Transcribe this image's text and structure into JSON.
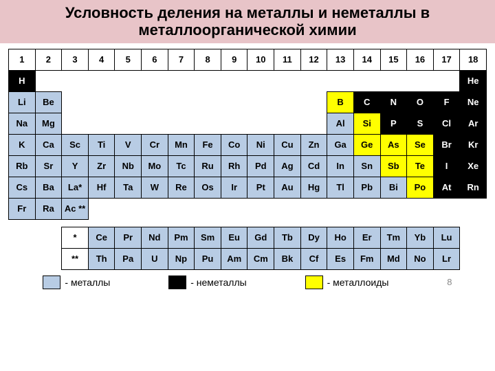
{
  "title": "Условность деления на металлы и неметаллы в металлоорганической химии",
  "colors": {
    "title_bg": "#e8c4c8",
    "metal": "#b8cce4",
    "nonmetal": "#000000",
    "nonmetal_text": "#ffffff",
    "metalloid": "#ffff00",
    "border": "#000000",
    "bg": "#ffffff"
  },
  "groups": [
    "1",
    "2",
    "3",
    "4",
    "5",
    "6",
    "7",
    "8",
    "9",
    "10",
    "11",
    "12",
    "13",
    "14",
    "15",
    "16",
    "17",
    "18"
  ],
  "rows": [
    [
      {
        "s": "H",
        "c": "nonmetal"
      },
      {
        "s": "",
        "c": "empty",
        "span": 16
      },
      {
        "s": "He",
        "c": "nonmetal"
      }
    ],
    [
      {
        "s": "Li",
        "c": "metal"
      },
      {
        "s": "Be",
        "c": "metal"
      },
      {
        "s": "",
        "c": "empty",
        "span": 10
      },
      {
        "s": "B",
        "c": "metalloid"
      },
      {
        "s": "C",
        "c": "nonmetal"
      },
      {
        "s": "N",
        "c": "nonmetal"
      },
      {
        "s": "O",
        "c": "nonmetal"
      },
      {
        "s": "F",
        "c": "nonmetal"
      },
      {
        "s": "Ne",
        "c": "nonmetal"
      }
    ],
    [
      {
        "s": "Na",
        "c": "metal"
      },
      {
        "s": "Mg",
        "c": "metal"
      },
      {
        "s": "",
        "c": "empty",
        "span": 10
      },
      {
        "s": "Al",
        "c": "metal"
      },
      {
        "s": "Si",
        "c": "metalloid"
      },
      {
        "s": "P",
        "c": "nonmetal"
      },
      {
        "s": "S",
        "c": "nonmetal"
      },
      {
        "s": "Cl",
        "c": "nonmetal"
      },
      {
        "s": "Ar",
        "c": "nonmetal"
      }
    ],
    [
      {
        "s": "K",
        "c": "metal"
      },
      {
        "s": "Ca",
        "c": "metal"
      },
      {
        "s": "Sc",
        "c": "metal"
      },
      {
        "s": "Ti",
        "c": "metal"
      },
      {
        "s": "V",
        "c": "metal"
      },
      {
        "s": "Cr",
        "c": "metal"
      },
      {
        "s": "Mn",
        "c": "metal"
      },
      {
        "s": "Fe",
        "c": "metal"
      },
      {
        "s": "Co",
        "c": "metal"
      },
      {
        "s": "Ni",
        "c": "metal"
      },
      {
        "s": "Cu",
        "c": "metal"
      },
      {
        "s": "Zn",
        "c": "metal"
      },
      {
        "s": "Ga",
        "c": "metal"
      },
      {
        "s": "Ge",
        "c": "metalloid"
      },
      {
        "s": "As",
        "c": "metalloid"
      },
      {
        "s": "Se",
        "c": "metalloid"
      },
      {
        "s": "Br",
        "c": "nonmetal"
      },
      {
        "s": "Kr",
        "c": "nonmetal"
      }
    ],
    [
      {
        "s": "Rb",
        "c": "metal"
      },
      {
        "s": "Sr",
        "c": "metal"
      },
      {
        "s": "Y",
        "c": "metal"
      },
      {
        "s": "Zr",
        "c": "metal"
      },
      {
        "s": "Nb",
        "c": "metal"
      },
      {
        "s": "Mo",
        "c": "metal"
      },
      {
        "s": "Tc",
        "c": "metal"
      },
      {
        "s": "Ru",
        "c": "metal"
      },
      {
        "s": "Rh",
        "c": "metal"
      },
      {
        "s": "Pd",
        "c": "metal"
      },
      {
        "s": "Ag",
        "c": "metal"
      },
      {
        "s": "Cd",
        "c": "metal"
      },
      {
        "s": "In",
        "c": "metal"
      },
      {
        "s": "Sn",
        "c": "metal"
      },
      {
        "s": "Sb",
        "c": "metalloid"
      },
      {
        "s": "Te",
        "c": "metalloid"
      },
      {
        "s": "I",
        "c": "nonmetal"
      },
      {
        "s": "Xe",
        "c": "nonmetal"
      }
    ],
    [
      {
        "s": "Cs",
        "c": "metal"
      },
      {
        "s": "Ba",
        "c": "metal"
      },
      {
        "s": "La*",
        "c": "metal"
      },
      {
        "s": "Hf",
        "c": "metal"
      },
      {
        "s": "Ta",
        "c": "metal"
      },
      {
        "s": "W",
        "c": "metal"
      },
      {
        "s": "Re",
        "c": "metal"
      },
      {
        "s": "Os",
        "c": "metal"
      },
      {
        "s": "Ir",
        "c": "metal"
      },
      {
        "s": "Pt",
        "c": "metal"
      },
      {
        "s": "Au",
        "c": "metal"
      },
      {
        "s": "Hg",
        "c": "metal"
      },
      {
        "s": "Tl",
        "c": "metal"
      },
      {
        "s": "Pb",
        "c": "metal"
      },
      {
        "s": "Bi",
        "c": "metal"
      },
      {
        "s": "Po",
        "c": "metalloid"
      },
      {
        "s": "At",
        "c": "nonmetal"
      },
      {
        "s": "Rn",
        "c": "nonmetal"
      }
    ],
    [
      {
        "s": "Fr",
        "c": "metal"
      },
      {
        "s": "Ra",
        "c": "metal"
      },
      {
        "s": "Ac **",
        "c": "metal"
      },
      {
        "s": "",
        "c": "empty",
        "span": 15
      }
    ]
  ],
  "lanth": {
    "label": "*",
    "cells": [
      "Ce",
      "Pr",
      "Nd",
      "Pm",
      "Sm",
      "Eu",
      "Gd",
      "Tb",
      "Dy",
      "Ho",
      "Er",
      "Tm",
      "Yb",
      "Lu"
    ]
  },
  "actin": {
    "label": "**",
    "cells": [
      "Th",
      "Pa",
      "U",
      "Np",
      "Pu",
      "Am",
      "Cm",
      "Bk",
      "Cf",
      "Es",
      "Fm",
      "Md",
      "No",
      "Lr"
    ]
  },
  "legend": {
    "metal": "- металлы",
    "nonmetal": "- неметаллы",
    "metalloid": "- металлоиды"
  },
  "page": "8"
}
